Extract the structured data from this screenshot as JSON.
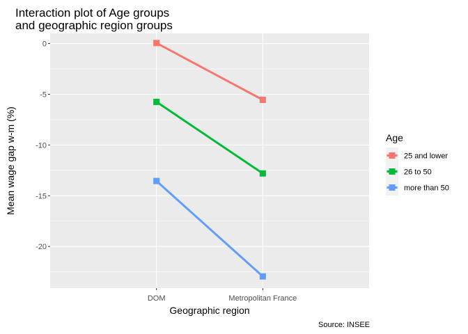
{
  "chart_data": {
    "type": "line",
    "title": [
      "Interaction plot of Age groups",
      "and geographic region groups"
    ],
    "xlabel": "Geographic region",
    "ylabel": "Mean wage gap w-m (%)",
    "caption": "Source: INSEE",
    "categories": [
      "DOM",
      "Metropolitan France"
    ],
    "ylim": [
      -24.1,
      1.0
    ],
    "yticks": [
      0,
      -5,
      -10,
      -15,
      -20
    ],
    "ytick_labels": [
      "0",
      "-5",
      "-10",
      "-15",
      "-20"
    ],
    "grid": true,
    "legend": {
      "title": "Age",
      "position": "right"
    },
    "series": [
      {
        "name": "25 and lower",
        "color": "#F8766D",
        "values": [
          0.05,
          -5.55
        ]
      },
      {
        "name": "26 to 50",
        "color": "#00BA38",
        "values": [
          -5.75,
          -12.8
        ]
      },
      {
        "name": "more than 50",
        "color": "#619CFF",
        "values": [
          -13.55,
          -22.95
        ]
      }
    ]
  }
}
